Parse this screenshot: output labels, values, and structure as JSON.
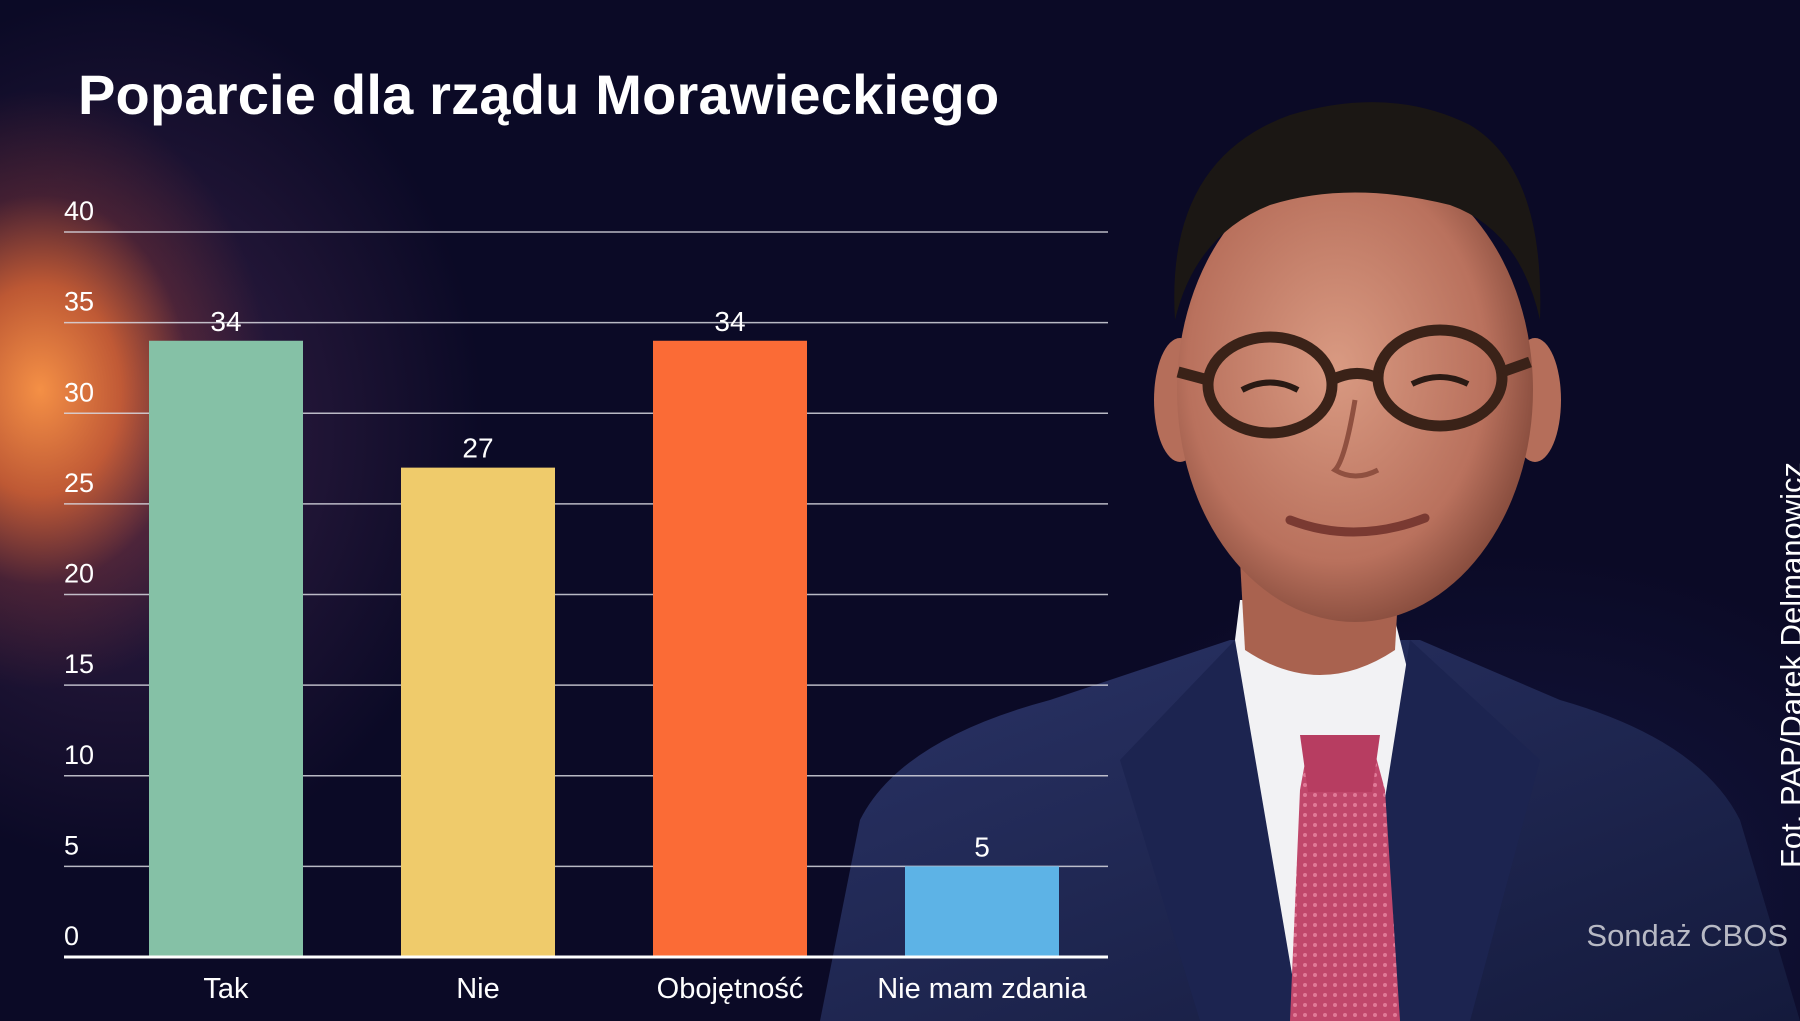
{
  "chart_data": {
    "type": "bar",
    "title": "Poparcie dla rządu Morawieckiego",
    "categories": [
      "Tak",
      "Nie",
      "Obojętność",
      "Nie mam zdania"
    ],
    "values": [
      34,
      27,
      34,
      5
    ],
    "colors": [
      "#85c1a6",
      "#efcb6b",
      "#fb6b36",
      "#5db3e6"
    ],
    "ylim": [
      0,
      40
    ],
    "yticks": [
      0,
      5,
      10,
      15,
      20,
      25,
      30,
      35,
      40
    ],
    "grid": true,
    "xlabel": "",
    "ylabel": ""
  },
  "credits": {
    "photo": "Fot. PAP/Darek Delmanowicz",
    "source": "Sondaż CBOS"
  },
  "image": {
    "subject": "portrait-photo"
  }
}
